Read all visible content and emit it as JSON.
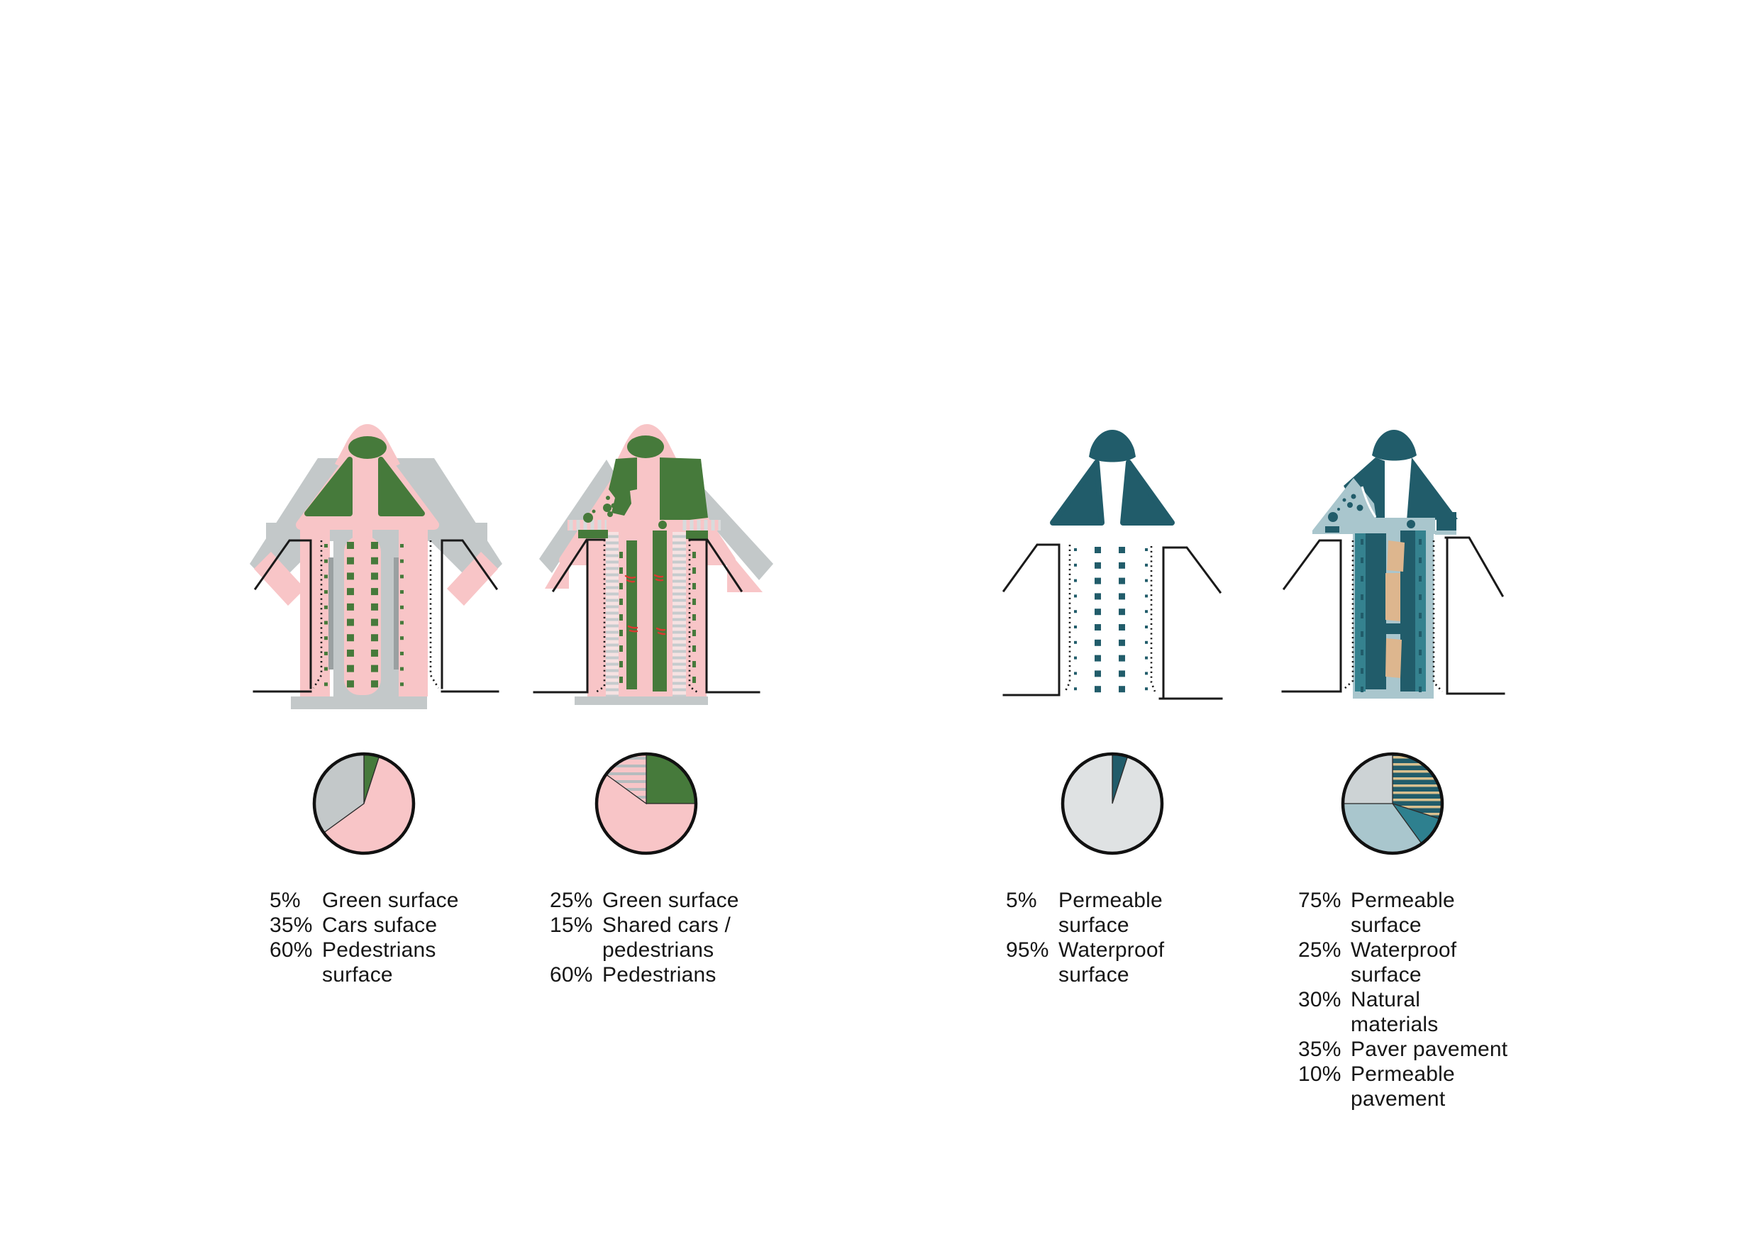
{
  "colors": {
    "pink": "#f8c5c7",
    "plan_gray": "#c3c8c9",
    "dark_gray_bar": "#9aa0a1",
    "green": "#467a3b",
    "teal_dark": "#215c6a",
    "teal_mid": "#35828f",
    "light_blue": "#a9c6cd",
    "tan": "#ddb68e",
    "pie_light_gray": "#dfe2e3",
    "pie4_gray": "#cdd3d5",
    "outline_black": "#1a1a1a",
    "red_marks": "#d8392f",
    "stripe_gray": "#b6bcbe",
    "stripe_tan": "#d9c08f",
    "ladder_gray": "#c6cbcd",
    "crosswalk_gray": "#d7dbdc"
  },
  "legends": [
    {
      "rows": [
        {
          "pct": "5%",
          "label": "Green surface",
          "lines": [
            "Green surface"
          ]
        },
        {
          "pct": "35%",
          "label": "Cars suface",
          "lines": [
            "Cars suface"
          ]
        },
        {
          "pct": "60%",
          "label": "Pedestrians surface",
          "lines": [
            "Pedestrians",
            "surface"
          ]
        }
      ]
    },
    {
      "rows": [
        {
          "pct": "25%",
          "label": "Green surface",
          "lines": [
            "Green surface"
          ]
        },
        {
          "pct": "15%",
          "label": "Shared cars / pedestrians",
          "lines": [
            "Shared cars /",
            "pedestrians"
          ]
        },
        {
          "pct": "60%",
          "label": "Pedestrians",
          "lines": [
            "Pedestrians"
          ]
        }
      ]
    },
    {
      "rows": [
        {
          "pct": "5%",
          "label": "Permeable surface",
          "lines": [
            "Permeable",
            "surface"
          ]
        },
        {
          "pct": "95%",
          "label": "Waterproof surface",
          "lines": [
            "Waterproof",
            "surface"
          ]
        }
      ]
    },
    {
      "rows": [
        {
          "pct": "75%",
          "label": "Permeable surface",
          "lines": [
            "Permeable",
            "surface"
          ]
        },
        {
          "pct": "25%",
          "label": "Waterproof surface",
          "lines": [
            "Waterproof",
            "surface"
          ]
        },
        {
          "pct": "30%",
          "label": "Natural materials",
          "lines": [
            "Natural",
            "materials"
          ]
        },
        {
          "pct": "35%",
          "label": "Paver pavement",
          "lines": [
            "Paver pavement"
          ]
        },
        {
          "pct": "10%",
          "label": "Permeable pavement",
          "lines": [
            "Permeable",
            "pavement"
          ]
        }
      ]
    }
  ],
  "chart_data": [
    {
      "type": "pie",
      "start_angle_deg": 0,
      "clockwise": true,
      "legend_position": "below",
      "slices": [
        {
          "label": "Green surface",
          "value": 5,
          "color": "#467a3b"
        },
        {
          "label": "Pedestrians surface",
          "value": 60,
          "color": "#f8c5c7"
        },
        {
          "label": "Cars suface",
          "value": 35,
          "color": "#c3c8c9"
        }
      ]
    },
    {
      "type": "pie",
      "start_angle_deg": 0,
      "clockwise": true,
      "legend_position": "below",
      "slices": [
        {
          "label": "Green surface",
          "value": 25,
          "color": "#467a3b"
        },
        {
          "label": "Pedestrians",
          "value": 60,
          "color": "#f8c5c7"
        },
        {
          "label": "Shared cars / pedestrians",
          "value": 15,
          "pattern": {
            "bg": "#f8c5c7",
            "fg": "#b6bcbe",
            "pitch": 11,
            "weight": 4,
            "orientation": "horizontal"
          }
        }
      ]
    },
    {
      "type": "pie",
      "start_angle_deg": 0,
      "clockwise": true,
      "legend_position": "below",
      "slices": [
        {
          "label": "Permeable surface",
          "value": 5,
          "color": "#215c6a"
        },
        {
          "label": "Waterproof surface",
          "value": 95,
          "color": "#dfe2e3"
        }
      ]
    },
    {
      "type": "pie",
      "start_angle_deg": 0,
      "clockwise": true,
      "legend_position": "below",
      "slices": [
        {
          "label": "Natural materials",
          "value": 30,
          "pattern": {
            "bg": "#215c6a",
            "fg": "#d9c08f",
            "pitch": 10,
            "weight": 3.5,
            "orientation": "horizontal"
          }
        },
        {
          "label": "Permeable pavement",
          "value": 10,
          "color": "#2e808f"
        },
        {
          "label": "Paver pavement",
          "value": 35,
          "color": "#a9c6cd"
        },
        {
          "label": "Waterproof surface",
          "value": 25,
          "color": "#cdd3d5"
        }
      ]
    }
  ]
}
